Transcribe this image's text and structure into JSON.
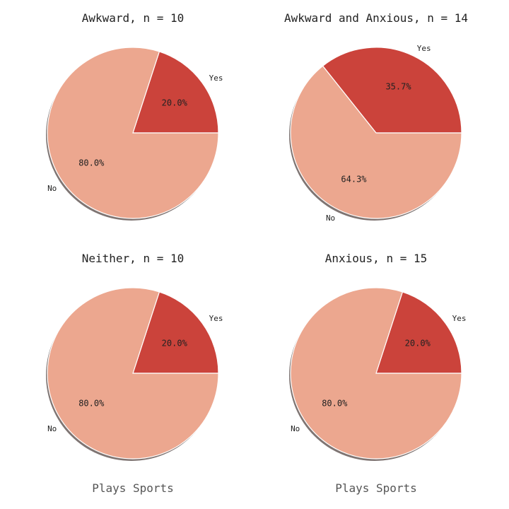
{
  "colors": {
    "yes": "#cb433b",
    "no": "#eca78f",
    "edge": "#ffffff",
    "shadow": "#7f7573"
  },
  "chart_data": [
    {
      "type": "pie",
      "title": "Awkward, n = 10",
      "slices": [
        {
          "label": "Yes",
          "value": 20.0,
          "pct_label": "20.0%"
        },
        {
          "label": "No",
          "value": 80.0,
          "pct_label": "80.0%"
        }
      ],
      "xlabel": ""
    },
    {
      "type": "pie",
      "title": "Awkward and Anxious, n = 14",
      "slices": [
        {
          "label": "Yes",
          "value": 35.7,
          "pct_label": "35.7%"
        },
        {
          "label": "No",
          "value": 64.3,
          "pct_label": "64.3%"
        }
      ],
      "xlabel": ""
    },
    {
      "type": "pie",
      "title": "Neither, n = 10",
      "slices": [
        {
          "label": "Yes",
          "value": 20.0,
          "pct_label": "20.0%"
        },
        {
          "label": "No",
          "value": 80.0,
          "pct_label": "80.0%"
        }
      ],
      "xlabel": "Plays Sports"
    },
    {
      "type": "pie",
      "title": "Anxious, n = 15",
      "slices": [
        {
          "label": "Yes",
          "value": 20.0,
          "pct_label": "20.0%"
        },
        {
          "label": "No",
          "value": 80.0,
          "pct_label": "80.0%"
        }
      ],
      "xlabel": "Plays Sports"
    }
  ]
}
